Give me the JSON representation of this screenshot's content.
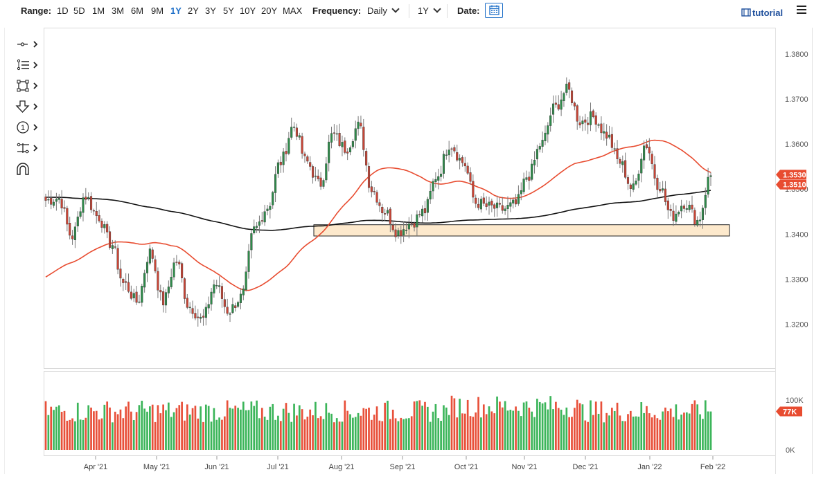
{
  "toolbar": {
    "range_label": "Range:",
    "ranges": [
      "1D",
      "5D",
      "1M",
      "3M",
      "6M",
      "9M",
      "1Y",
      "2Y",
      "3Y",
      "5Y",
      "10Y",
      "20Y",
      "MAX"
    ],
    "active_range": "1Y",
    "frequency_label": "Frequency:",
    "frequency_value": "Daily",
    "period_value": "1Y",
    "date_label": "Date:",
    "tutorial_label": "tutorial"
  },
  "tools": [
    "crosshair-icon",
    "draw-lines-icon",
    "shapes-icon",
    "arrow-down-icon",
    "annotation-icon",
    "measure-icon",
    "magnet-icon"
  ],
  "colors": {
    "up": "#2e8b4a",
    "down": "#c94536",
    "ma_fast": "#e84c30",
    "ma_slow": "#111111",
    "support_fill": "#fde9cc",
    "active": "#1e6fc8"
  },
  "chart_data": {
    "type": "candlestick",
    "y_ticks": [
      "1.3800",
      "1.3700",
      "1.3600",
      "1.3500",
      "1.3400",
      "1.3300",
      "1.3200"
    ],
    "ylim": [
      1.3155,
      1.3835
    ],
    "x_labels": [
      "Apr '21",
      "May '21",
      "Jun '21",
      "Jul '21",
      "Aug '21",
      "Sep '21",
      "Oct '21",
      "Nov '21",
      "Dec '21",
      "Jan '22",
      "Feb '22"
    ],
    "last_price_label": "1.3530",
    "ma_label": "1.3510",
    "support_zone": [
      1.3396,
      1.3421
    ],
    "volume_ticks": [
      "100K",
      "0K"
    ],
    "volume_last_label": "77K",
    "volume_max": 150,
    "price_path": [
      [
        1.3475,
        "Mar '21"
      ],
      [
        1.348,
        "Apr '21"
      ],
      [
        1.3395,
        "Apr '21"
      ],
      [
        1.3485,
        "Apr '21"
      ],
      [
        1.344,
        "Apr '21"
      ],
      [
        1.338,
        "May '21"
      ],
      [
        1.329,
        "May '21"
      ],
      [
        1.325,
        "May '21"
      ],
      [
        1.336,
        "May '21"
      ],
      [
        1.325,
        "May '21"
      ],
      [
        1.334,
        "Jun '21"
      ],
      [
        1.324,
        "Jun '21"
      ],
      [
        1.321,
        "Jun '21"
      ],
      [
        1.329,
        "Jun '21"
      ],
      [
        1.323,
        "Jun '21"
      ],
      [
        1.326,
        "Jul '21"
      ],
      [
        1.341,
        "Jul '21"
      ],
      [
        1.346,
        "Jul '21"
      ],
      [
        1.356,
        "Jul '21"
      ],
      [
        1.364,
        "Jul '21"
      ],
      [
        1.356,
        "Aug '21"
      ],
      [
        1.351,
        "Aug '21"
      ],
      [
        1.362,
        "Aug '21"
      ],
      [
        1.359,
        "Aug '21"
      ],
      [
        1.364,
        "Aug '21"
      ],
      [
        1.35,
        "Sep '21"
      ],
      [
        1.345,
        "Sep '21"
      ],
      [
        1.3405,
        "Sep '21"
      ],
      [
        1.3425,
        "Sep '21"
      ],
      [
        1.345,
        "Sep '21"
      ],
      [
        1.353,
        "Oct '21"
      ],
      [
        1.36,
        "Oct '21"
      ],
      [
        1.356,
        "Oct '21"
      ],
      [
        1.347,
        "Oct '21"
      ],
      [
        1.346,
        "Oct '21"
      ],
      [
        1.3455,
        "Nov '21"
      ],
      [
        1.3465,
        "Nov '21"
      ],
      [
        1.353,
        "Nov '21"
      ],
      [
        1.36,
        "Nov '21"
      ],
      [
        1.368,
        "Nov '21"
      ],
      [
        1.372,
        "Dec '21"
      ],
      [
        1.365,
        "Dec '21"
      ],
      [
        1.366,
        "Dec '21"
      ],
      [
        1.362,
        "Dec '21"
      ],
      [
        1.356,
        "Dec '21"
      ],
      [
        1.35,
        "Jan '22"
      ],
      [
        1.36,
        "Jan '22"
      ],
      [
        1.351,
        "Jan '22"
      ],
      [
        1.344,
        "Jan '22"
      ],
      [
        1.347,
        "Jan '22"
      ],
      [
        1.343,
        "Jan '22"
      ],
      [
        1.353,
        "Feb '22"
      ]
    ]
  }
}
